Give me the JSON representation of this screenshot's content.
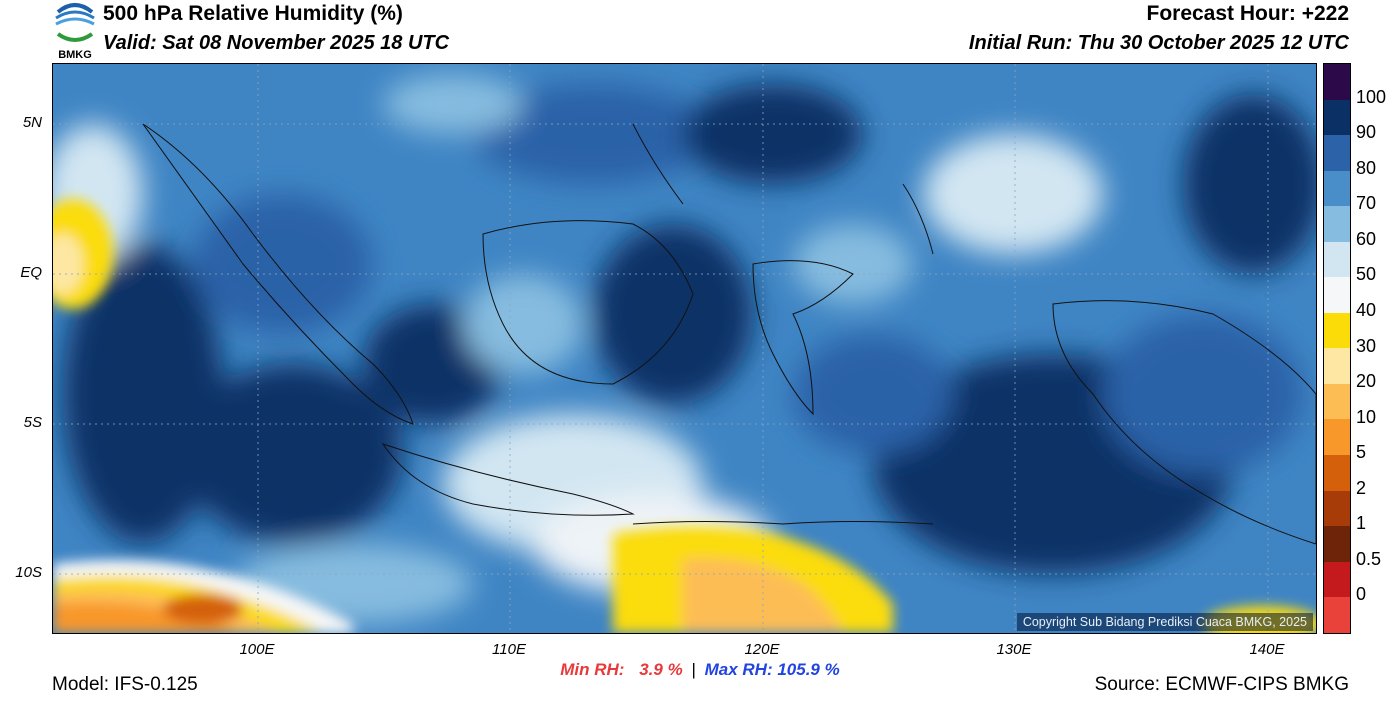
{
  "header": {
    "title": "500 hPa Relative Humidity (%)",
    "valid": "Valid: Sat 08 November 2025 18 UTC",
    "forecast_hour": "Forecast Hour: +222",
    "initial_run": "Initial Run: Thu 30 October 2025 12 UTC",
    "logo_text": "BMKG"
  },
  "map": {
    "lat_labels": [
      "5N",
      "EQ",
      "5S",
      "10S"
    ],
    "lon_labels": [
      "100E",
      "110E",
      "120E",
      "130E",
      "140E"
    ],
    "copyright": "Copyright Sub Bidang Prediksi Cuaca BMKG, 2025"
  },
  "colorbar": {
    "labels": [
      "100",
      "90",
      "80",
      "70",
      "60",
      "50",
      "40",
      "30",
      "20",
      "10",
      "5",
      "2",
      "1",
      "0.5",
      "0"
    ],
    "colors": [
      "#2c0a4a",
      "#0b3066",
      "#2c62a8",
      "#4a8ec9",
      "#86bcdf",
      "#d2e6f2",
      "#f6f7f8",
      "#fbdc08",
      "#fde7a3",
      "#fdbd55",
      "#f8972a",
      "#d4600c",
      "#a83c08",
      "#6e2408",
      "#c41a1e",
      "#e8423a"
    ]
  },
  "stats": {
    "min_label": "Min RH:",
    "min_value": "3.9 %",
    "separator": "|",
    "max_label": "Max RH:",
    "max_value": "105.9 %",
    "min_color": "#e83a3a",
    "max_color": "#2244e0"
  },
  "footer": {
    "model": "Model: IFS-0.125",
    "source": "Source: ECMWF-CIPS BMKG"
  }
}
